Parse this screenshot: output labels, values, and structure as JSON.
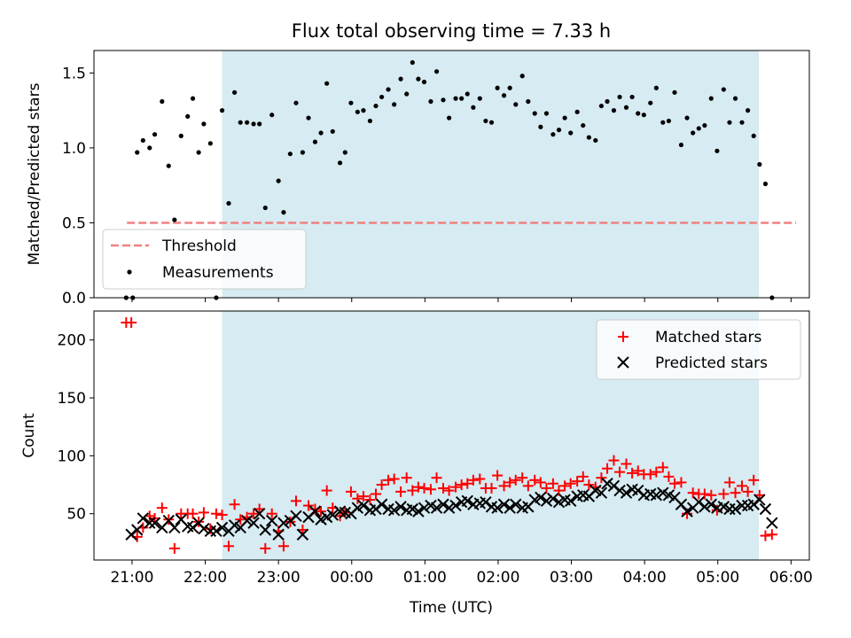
{
  "title": "Flux total observing time = 7.33 h",
  "xlabel": "Time (UTC)",
  "x_ticks": [
    "21:00",
    "22:00",
    "23:00",
    "00:00",
    "01:00",
    "02:00",
    "03:00",
    "04:00",
    "05:00",
    "06:00"
  ],
  "colors": {
    "shade": "#add8e6",
    "threshold": "#f08080",
    "measurements": "#000000",
    "matched": "#ff0000",
    "predicted": "#000000"
  },
  "chart_data": [
    {
      "type": "scatter",
      "ylabel": "Matched/Predicted stars",
      "x_unit": "hours since 21:00 UTC",
      "xlim": [
        -0.52,
        9.25
      ],
      "ylim": [
        0,
        1.65
      ],
      "y_ticks": [
        "0.0",
        "0.5",
        "1.0",
        "1.5"
      ],
      "y_tick_values": [
        0,
        0.5,
        1.0,
        1.5
      ],
      "shaded_interval": [
        1.23,
        8.56
      ],
      "legend": {
        "position": "lower-left",
        "entries": [
          "Threshold",
          "Measurements"
        ]
      },
      "threshold": {
        "name": "Threshold",
        "y": 0.5,
        "x_range": [
          -0.07,
          9.07
        ]
      },
      "series": [
        {
          "name": "Measurements",
          "x": [
            -0.08,
            0.01,
            0.07,
            0.15,
            0.24,
            0.31,
            0.41,
            0.5,
            0.58,
            0.67,
            0.76,
            0.83,
            0.91,
            0.98,
            1.07,
            1.15,
            1.23,
            1.32,
            1.4,
            1.48,
            1.57,
            1.66,
            1.74,
            1.82,
            1.91,
            2.0,
            2.07,
            2.16,
            2.24,
            2.33,
            2.41,
            2.5,
            2.58,
            2.66,
            2.74,
            2.84,
            2.91,
            2.99,
            3.08,
            3.16,
            3.25,
            3.33,
            3.41,
            3.5,
            3.58,
            3.67,
            3.75,
            3.83,
            3.91,
            3.99,
            4.08,
            4.16,
            4.25,
            4.33,
            4.42,
            4.5,
            4.58,
            4.66,
            4.75,
            4.83,
            4.91,
            4.99,
            5.08,
            5.16,
            5.24,
            5.33,
            5.41,
            5.5,
            5.58,
            5.66,
            5.75,
            5.83,
            5.91,
            5.99,
            6.08,
            6.16,
            6.24,
            6.33,
            6.41,
            6.49,
            6.58,
            6.66,
            6.75,
            6.83,
            6.91,
            6.99,
            7.08,
            7.16,
            7.25,
            7.33,
            7.41,
            7.5,
            7.58,
            7.66,
            7.74,
            7.82,
            7.91,
            7.99,
            8.08,
            8.16,
            8.24,
            8.33,
            8.41,
            8.49,
            8.57,
            8.65,
            8.74
          ],
          "y": [
            0.0,
            0.0,
            0.97,
            1.05,
            1.0,
            1.09,
            1.31,
            0.88,
            0.52,
            1.08,
            1.21,
            1.33,
            0.97,
            1.16,
            1.03,
            0.0,
            1.25,
            0.63,
            1.37,
            1.17,
            1.17,
            1.16,
            1.16,
            0.6,
            1.22,
            0.78,
            0.57,
            0.96,
            1.3,
            0.97,
            1.2,
            1.04,
            1.1,
            1.43,
            1.11,
            0.9,
            0.97,
            1.3,
            1.24,
            1.25,
            1.18,
            1.28,
            1.34,
            1.39,
            1.29,
            1.46,
            1.36,
            1.57,
            1.46,
            1.44,
            1.31,
            1.51,
            1.32,
            1.2,
            1.33,
            1.33,
            1.36,
            1.27,
            1.33,
            1.18,
            1.17,
            1.4,
            1.35,
            1.4,
            1.29,
            1.48,
            1.31,
            1.23,
            1.14,
            1.23,
            1.09,
            1.12,
            1.2,
            1.1,
            1.24,
            1.15,
            1.07,
            1.05,
            1.28,
            1.31,
            1.25,
            1.34,
            1.27,
            1.34,
            1.23,
            1.22,
            1.3,
            1.4,
            1.17,
            1.18,
            1.37,
            1.02,
            1.2,
            1.1,
            1.13,
            1.15,
            1.33,
            0.98,
            1.39,
            1.17,
            1.33,
            1.17,
            1.25,
            1.08,
            0.89,
            0.76,
            0.0
          ]
        }
      ]
    },
    {
      "type": "scatter",
      "ylabel": "Count",
      "x_unit": "hours since 21:00 UTC",
      "xlim": [
        -0.52,
        9.25
      ],
      "ylim": [
        10,
        225
      ],
      "y_ticks": [
        "50",
        "100",
        "150",
        "200"
      ],
      "y_tick_values": [
        50,
        100,
        150,
        200
      ],
      "shaded_interval": [
        1.23,
        8.56
      ],
      "legend": {
        "position": "upper-right",
        "entries": [
          "Matched stars",
          "Predicted stars"
        ]
      },
      "series": [
        {
          "name": "Matched stars",
          "x": [
            -0.08,
            -0.01,
            0.07,
            0.15,
            0.24,
            0.31,
            0.41,
            0.5,
            0.58,
            0.67,
            0.76,
            0.83,
            0.91,
            0.98,
            1.07,
            1.15,
            1.23,
            1.32,
            1.4,
            1.48,
            1.57,
            1.66,
            1.74,
            1.82,
            1.91,
            2.0,
            2.07,
            2.16,
            2.24,
            2.33,
            2.41,
            2.5,
            2.58,
            2.66,
            2.74,
            2.84,
            2.91,
            2.99,
            3.08,
            3.16,
            3.25,
            3.33,
            3.41,
            3.5,
            3.58,
            3.67,
            3.75,
            3.83,
            3.91,
            3.99,
            4.08,
            4.16,
            4.25,
            4.33,
            4.42,
            4.5,
            4.58,
            4.66,
            4.75,
            4.83,
            4.91,
            4.99,
            5.08,
            5.16,
            5.24,
            5.33,
            5.41,
            5.5,
            5.58,
            5.66,
            5.75,
            5.83,
            5.91,
            5.99,
            6.08,
            6.16,
            6.24,
            6.33,
            6.41,
            6.49,
            6.58,
            6.66,
            6.75,
            6.83,
            6.91,
            6.99,
            7.08,
            7.16,
            7.25,
            7.33,
            7.41,
            7.5,
            7.58,
            7.66,
            7.74,
            7.82,
            7.91,
            7.99,
            8.08,
            8.16,
            8.24,
            8.33,
            8.41,
            8.49,
            8.57,
            8.65,
            8.74
          ],
          "y": [
            215,
            215,
            30,
            38,
            48,
            46,
            55,
            45,
            20,
            50,
            50,
            50,
            43,
            51,
            37,
            50,
            49,
            22,
            58,
            45,
            47,
            50,
            54,
            20,
            50,
            35,
            22,
            43,
            61,
            36,
            57,
            54,
            52,
            70,
            55,
            48,
            51,
            69,
            63,
            65,
            62,
            67,
            75,
            79,
            80,
            69,
            81,
            70,
            73,
            72,
            71,
            81,
            72,
            70,
            73,
            75,
            76,
            79,
            80,
            72,
            72,
            83,
            74,
            77,
            79,
            81,
            74,
            79,
            77,
            72,
            76,
            70,
            74,
            76,
            78,
            82,
            75,
            73,
            81,
            89,
            96,
            86,
            93,
            85,
            87,
            84,
            84,
            86,
            90,
            82,
            76,
            77,
            50,
            68,
            67,
            67,
            66,
            53,
            67,
            77,
            68,
            74,
            69,
            79,
            66,
            31,
            32
          ]
        },
        {
          "name": "Predicted stars",
          "x": [
            -0.01,
            0.07,
            0.15,
            0.24,
            0.31,
            0.41,
            0.5,
            0.58,
            0.67,
            0.76,
            0.83,
            0.91,
            0.98,
            1.07,
            1.15,
            1.23,
            1.32,
            1.4,
            1.48,
            1.57,
            1.66,
            1.74,
            1.82,
            1.91,
            2.0,
            2.07,
            2.16,
            2.24,
            2.33,
            2.41,
            2.5,
            2.58,
            2.66,
            2.74,
            2.84,
            2.91,
            2.99,
            3.08,
            3.16,
            3.25,
            3.33,
            3.41,
            3.5,
            3.58,
            3.67,
            3.75,
            3.83,
            3.91,
            3.99,
            4.08,
            4.16,
            4.25,
            4.33,
            4.42,
            4.5,
            4.58,
            4.66,
            4.75,
            4.83,
            4.91,
            4.99,
            5.08,
            5.16,
            5.24,
            5.33,
            5.41,
            5.5,
            5.58,
            5.66,
            5.75,
            5.83,
            5.91,
            5.99,
            6.08,
            6.16,
            6.24,
            6.33,
            6.41,
            6.49,
            6.58,
            6.66,
            6.75,
            6.83,
            6.91,
            6.99,
            7.08,
            7.16,
            7.25,
            7.33,
            7.41,
            7.5,
            7.58,
            7.66,
            7.74,
            7.82,
            7.91,
            7.99,
            8.08,
            8.16,
            8.24,
            8.33,
            8.41,
            8.49,
            8.57,
            8.65,
            8.74
          ],
          "y": [
            32,
            36,
            46,
            42,
            42,
            38,
            44,
            38,
            45,
            39,
            38,
            42,
            37,
            35,
            35,
            38,
            35,
            40,
            38,
            44,
            42,
            50,
            36,
            44,
            32,
            42,
            44,
            48,
            32,
            47,
            52,
            45,
            47,
            49,
            52,
            51,
            50,
            55,
            57,
            53,
            54,
            58,
            54,
            53,
            56,
            53,
            54,
            52,
            55,
            57,
            55,
            58,
            55,
            57,
            60,
            61,
            58,
            59,
            60,
            56,
            55,
            58,
            55,
            58,
            55,
            56,
            62,
            64,
            61,
            63,
            60,
            62,
            61,
            65,
            66,
            65,
            70,
            68,
            76,
            74,
            70,
            68,
            71,
            70,
            66,
            67,
            66,
            68,
            66,
            64,
            58,
            52,
            55,
            60,
            56,
            58,
            55,
            56,
            54,
            54,
            57,
            57,
            58,
            62,
            54,
            42
          ]
        }
      ]
    }
  ]
}
